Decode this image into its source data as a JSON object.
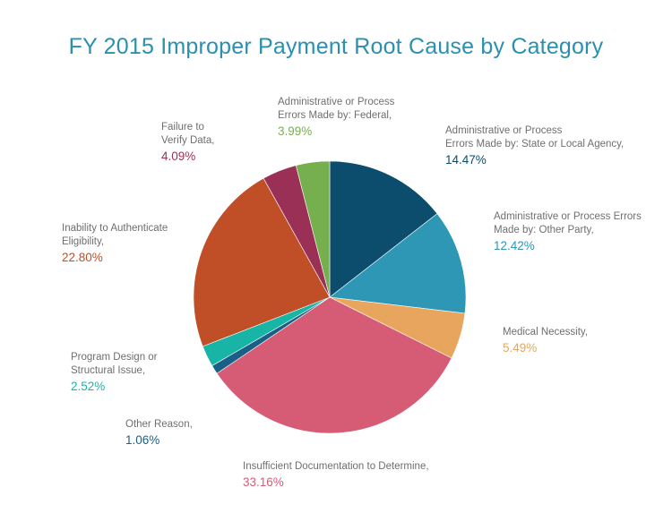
{
  "chart_data": {
    "type": "pie",
    "title": "FY 2015 Improper Payment Root Cause by Category",
    "slices": [
      {
        "name": "Administrative or Process\nErrors Made by: State or Local Agency,",
        "pct_label": "14.47%",
        "value": 14.47,
        "color": "#0c4d6d"
      },
      {
        "name": "Administrative or Process Errors\nMade by: Other Party,",
        "pct_label": "12.42%",
        "value": 12.42,
        "color": "#2e97b5"
      },
      {
        "name": "Medical Necessity,",
        "pct_label": "5.49%",
        "value": 5.49,
        "color": "#e8a55e"
      },
      {
        "name": "Insufficient Documentation to Determine,",
        "pct_label": "33.16%",
        "value": 33.16,
        "color": "#d65c75"
      },
      {
        "name": "Other Reason,",
        "pct_label": "1.06%",
        "value": 1.06,
        "color": "#1a5f85"
      },
      {
        "name": "Program Design or\nStructural Issue,",
        "pct_label": "2.52%",
        "value": 2.52,
        "color": "#18b5a6"
      },
      {
        "name": "Inability to Authenticate\nEligibility,",
        "pct_label": "22.80%",
        "value": 22.8,
        "color": "#c04f27"
      },
      {
        "name": "Failure to\nVerify Data,",
        "pct_label": "4.09%",
        "value": 4.09,
        "color": "#9b3057"
      },
      {
        "name": "Administrative or Process\nErrors Made by: Federal,",
        "pct_label": "3.99%",
        "value": 3.99,
        "color": "#76b04e"
      }
    ],
    "label_text_color": "#6f6f6f",
    "title_color": "#2a8fb0"
  }
}
